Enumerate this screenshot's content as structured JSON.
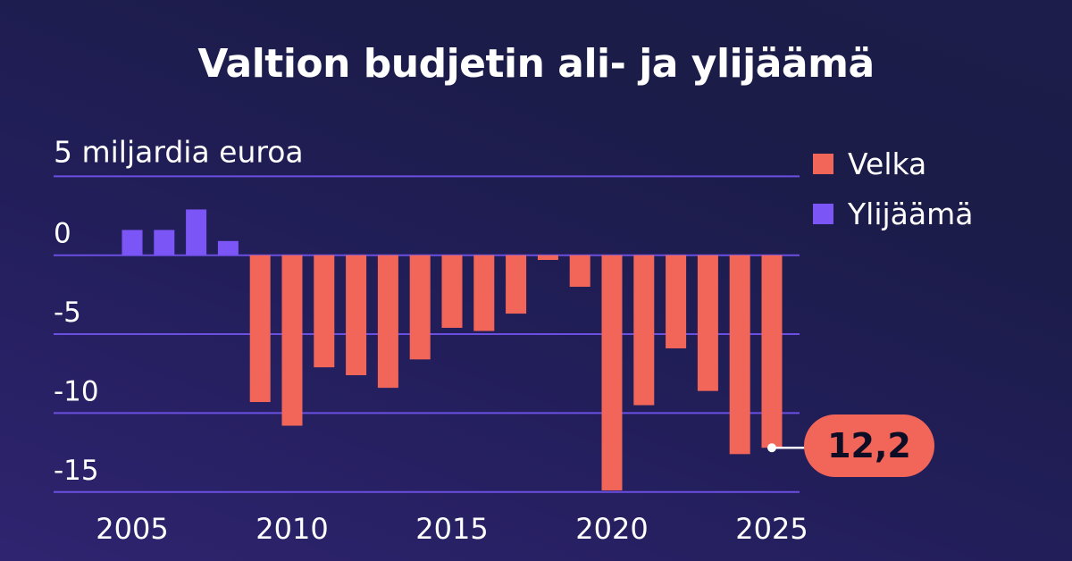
{
  "chart_data": {
    "type": "bar",
    "title": "Valtion budjetin ali- ja ylijäämä",
    "ylabel": "5 miljardia euroa",
    "x": [
      2005,
      2006,
      2007,
      2008,
      2009,
      2010,
      2011,
      2012,
      2013,
      2014,
      2015,
      2016,
      2017,
      2018,
      2019,
      2020,
      2021,
      2022,
      2023,
      2024,
      2025
    ],
    "values": [
      1.6,
      1.6,
      2.9,
      0.9,
      -9.3,
      -10.8,
      -7.1,
      -7.6,
      -8.4,
      -6.6,
      -4.6,
      -4.8,
      -3.7,
      -0.3,
      -2.0,
      -14.9,
      -9.5,
      -5.9,
      -8.6,
      -12.6,
      -12.2
    ],
    "ylim": [
      -15,
      5
    ],
    "yticks": [
      "0",
      "-5",
      "-10",
      "-15"
    ],
    "xticks": [
      "2005",
      "2010",
      "2015",
      "2020",
      "2025"
    ],
    "grid": true,
    "legend_position": "top-right",
    "series": [
      {
        "name": "Velka",
        "color": "#f2665a"
      },
      {
        "name": "Ylijäämä",
        "color": "#7b55f5"
      }
    ],
    "annotation": "12,2",
    "gridline_color": "#6b4fe0"
  }
}
